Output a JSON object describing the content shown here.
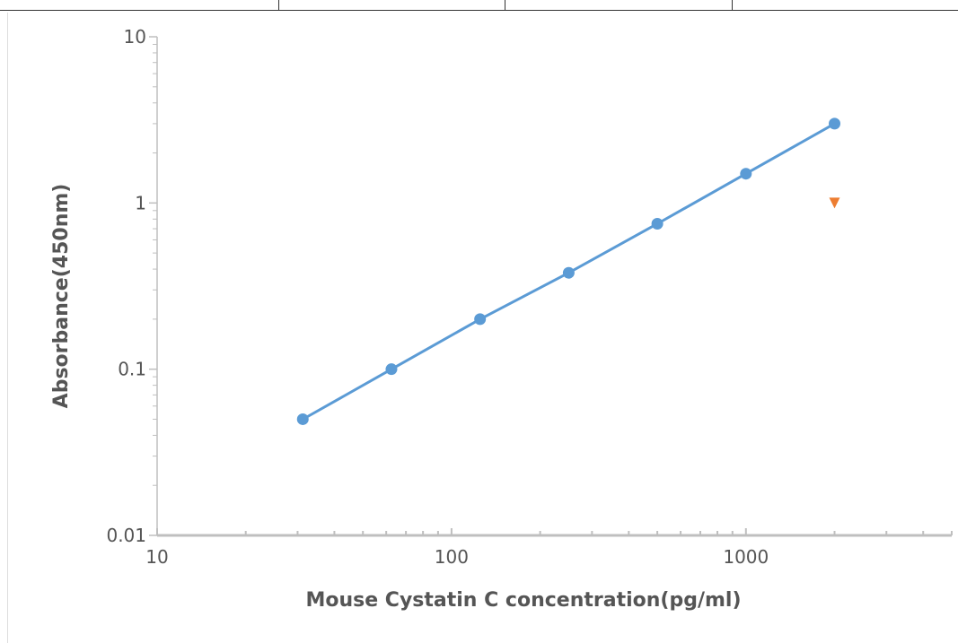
{
  "chart_data": {
    "type": "scatter",
    "title": "",
    "xlabel": "Mouse Cystatin C concentration(pg/ml)",
    "ylabel": "Absorbance(450nm)",
    "x_scale": "log",
    "y_scale": "log",
    "xlim": [
      10,
      5000
    ],
    "ylim": [
      0.01,
      10
    ],
    "x_ticks": [
      "10",
      "100",
      "1000"
    ],
    "y_ticks": [
      "0.01",
      "0.1",
      "1",
      "10"
    ],
    "grid": false,
    "series": [
      {
        "marker": "circle",
        "line": true,
        "color": "#5b9bd5",
        "x": [
          31.25,
          62.5,
          125,
          250,
          500,
          1000,
          2000
        ],
        "y": [
          0.05,
          0.1,
          0.2,
          0.38,
          0.75,
          1.5,
          3.0
        ]
      },
      {
        "marker": "triangle-down",
        "line": false,
        "color": "#ed7d31",
        "x": [
          2000
        ],
        "y": [
          1.0
        ]
      }
    ]
  }
}
